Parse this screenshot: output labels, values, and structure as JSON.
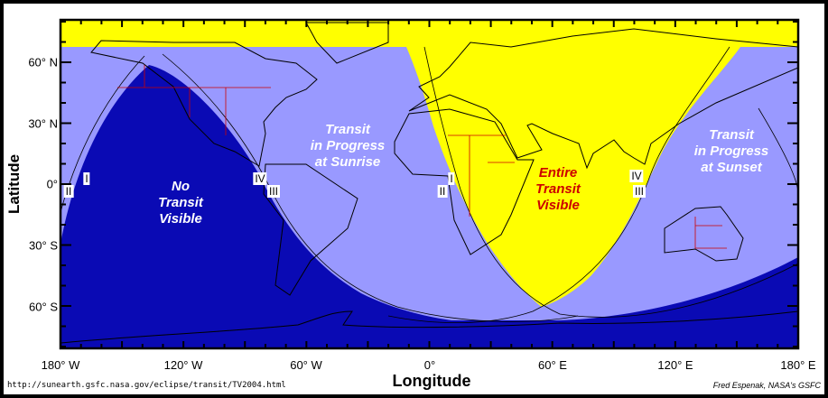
{
  "map": {
    "colors": {
      "entire_visible": "#ffff00",
      "partial": "#9999ff",
      "not_visible": "#0a0ab4",
      "borders": "#cc0000",
      "coast": "#000000"
    },
    "regions": {
      "none": "No\nTransit\nVisible",
      "sunrise": "Transit\nin Progress\nat Sunrise",
      "entire": "Entire\nTransit\nVisible",
      "sunset": "Transit\nin Progress\nat Sunset"
    },
    "contact_labels": {
      "left_ii": "II",
      "left_i": "I",
      "left_iv": "IV",
      "left_iii": "III",
      "mid_i": "I",
      "mid_ii": "II",
      "right_iv": "IV",
      "right_iii": "III"
    }
  },
  "axes": {
    "ylabel": "Latitude",
    "xlabel": "Longitude",
    "yticks": [
      "60° N",
      "30° N",
      "0°",
      "30° S",
      "60° S"
    ],
    "xticks": [
      "180° W",
      "120° W",
      "60° W",
      "0°",
      "60° E",
      "120° E",
      "180° E"
    ]
  },
  "footer": {
    "url": "http://sunearth.gsfc.nasa.gov/eclipse/transit/TV2004.html",
    "credit": "Fred Espenak, NASA's GSFC"
  }
}
